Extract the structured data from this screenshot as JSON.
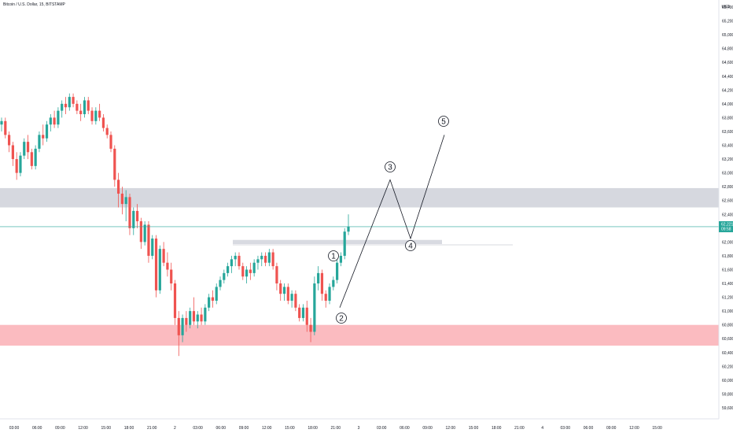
{
  "header": {
    "title": "Bitcoin / U.S. Dollar, 15, BITSTAMP",
    "currency": "USD"
  },
  "price_badge": {
    "value": "62,221",
    "countdown": "09:58"
  },
  "colors": {
    "up": "#26a69a",
    "down": "#ef5350",
    "resistance_zone": "#d1d4dc",
    "support_zone": "#fbb4b9",
    "last_price_line": "#26a69a"
  },
  "chart_data": {
    "type": "candlestick",
    "symbol": "Bitcoin / U.S. Dollar",
    "interval": "15",
    "exchange": "BITSTAMP",
    "ylim": [
      59600,
      65400
    ],
    "y_ticks": [
      65400,
      65200,
      65000,
      64800,
      64600,
      64400,
      64200,
      64000,
      63800,
      63600,
      63400,
      63200,
      63000,
      62800,
      62600,
      62400,
      62200,
      62000,
      61800,
      61600,
      61400,
      61200,
      61000,
      60800,
      60600,
      60400,
      60200,
      60000,
      59800,
      59600
    ],
    "x_ticks": [
      "03:00",
      "06:00",
      "09:00",
      "12:00",
      "15:00",
      "18:00",
      "21:00",
      "2",
      "03:00",
      "06:00",
      "09:00",
      "12:00",
      "15:00",
      "18:00",
      "21:00",
      "3",
      "03:00",
      "06:00",
      "09:00",
      "12:00",
      "15:00",
      "18:00",
      "21:00",
      "4",
      "03:00",
      "06:00",
      "09:00",
      "12:00",
      "15:00"
    ],
    "last_price": 62221,
    "zones": [
      {
        "type": "resistance",
        "from": 62500,
        "to": 62780
      },
      {
        "type": "support",
        "from": 60500,
        "to": 60800
      },
      {
        "type": "minor-resistance",
        "from": 61970,
        "to": 62030
      }
    ],
    "wave_labels": [
      "1",
      "2",
      "3",
      "4",
      "5"
    ],
    "wave_points": [
      {
        "label": "",
        "x": 160,
        "price": 61050
      },
      {
        "label": "3",
        "x": 180,
        "price": 62900
      },
      {
        "label": "4",
        "x": 190,
        "price": 62050
      },
      {
        "label": "5",
        "x": 205,
        "price": 63550
      }
    ],
    "candles_ohlc": [
      [
        63700,
        63800,
        63600,
        63750
      ],
      [
        63750,
        63800,
        63500,
        63550
      ],
      [
        63550,
        63600,
        63300,
        63400
      ],
      [
        63400,
        63450,
        63100,
        63200
      ],
      [
        63200,
        63300,
        62900,
        63000
      ],
      [
        63000,
        63300,
        62950,
        63250
      ],
      [
        63250,
        63500,
        63200,
        63450
      ],
      [
        63450,
        63550,
        63200,
        63300
      ],
      [
        63300,
        63350,
        63050,
        63100
      ],
      [
        63100,
        63400,
        63050,
        63350
      ],
      [
        63350,
        63600,
        63300,
        63550
      ],
      [
        63550,
        63700,
        63400,
        63500
      ],
      [
        63500,
        63750,
        63450,
        63700
      ],
      [
        63700,
        63850,
        63600,
        63800
      ],
      [
        63800,
        63900,
        63650,
        63700
      ],
      [
        63700,
        63950,
        63650,
        63900
      ],
      [
        63900,
        64050,
        63800,
        64000
      ],
      [
        64000,
        64100,
        63850,
        63950
      ],
      [
        63950,
        64150,
        63900,
        64100
      ],
      [
        64100,
        64150,
        63950,
        64000
      ],
      [
        64000,
        64050,
        63850,
        63900
      ],
      [
        63900,
        64000,
        63750,
        63850
      ],
      [
        63850,
        64100,
        63800,
        64050
      ],
      [
        64050,
        64100,
        63850,
        63900
      ],
      [
        63900,
        63950,
        63700,
        63750
      ],
      [
        63750,
        63950,
        63700,
        63900
      ],
      [
        63900,
        64000,
        63750,
        63800
      ],
      [
        63800,
        63850,
        63600,
        63650
      ],
      [
        63650,
        63700,
        63500,
        63550
      ],
      [
        63550,
        63600,
        63300,
        63350
      ],
      [
        63350,
        63400,
        62800,
        62900
      ],
      [
        62900,
        63000,
        62500,
        62700
      ],
      [
        62700,
        62800,
        62400,
        62550
      ],
      [
        62550,
        62750,
        62300,
        62650
      ],
      [
        62650,
        62700,
        62100,
        62200
      ],
      [
        62200,
        62500,
        62100,
        62450
      ],
      [
        62450,
        62550,
        62200,
        62300
      ],
      [
        62300,
        62350,
        61900,
        62000
      ],
      [
        62000,
        62300,
        61950,
        62250
      ],
      [
        62250,
        62300,
        61700,
        61800
      ],
      [
        61800,
        62100,
        61750,
        62050
      ],
      [
        62050,
        62100,
        61200,
        61300
      ],
      [
        61300,
        61950,
        61250,
        61900
      ],
      [
        61900,
        62000,
        61650,
        61700
      ],
      [
        61700,
        61850,
        61500,
        61600
      ],
      [
        61600,
        61700,
        61300,
        61400
      ],
      [
        61400,
        61450,
        60800,
        60900
      ],
      [
        60900,
        61000,
        60350,
        60650
      ],
      [
        60650,
        60950,
        60550,
        60900
      ],
      [
        60900,
        61000,
        60700,
        60800
      ],
      [
        60800,
        61050,
        60750,
        61000
      ],
      [
        61000,
        61200,
        60800,
        60850
      ],
      [
        60850,
        61000,
        60750,
        60950
      ],
      [
        60950,
        61050,
        60800,
        60850
      ],
      [
        60850,
        61100,
        60800,
        61050
      ],
      [
        61050,
        61250,
        61000,
        61200
      ],
      [
        61200,
        61300,
        61050,
        61150
      ],
      [
        61150,
        61400,
        61100,
        61350
      ],
      [
        61350,
        61500,
        61300,
        61450
      ],
      [
        61450,
        61600,
        61400,
        61550
      ],
      [
        61550,
        61700,
        61500,
        61650
      ],
      [
        61650,
        61800,
        61550,
        61750
      ],
      [
        61750,
        61850,
        61650,
        61800
      ],
      [
        61800,
        61850,
        61600,
        61650
      ],
      [
        61650,
        61700,
        61450,
        61500
      ],
      [
        61500,
        61650,
        61400,
        61600
      ],
      [
        61600,
        61700,
        61450,
        61550
      ],
      [
        61550,
        61750,
        61500,
        61700
      ],
      [
        61700,
        61800,
        61600,
        61750
      ],
      [
        61750,
        61850,
        61650,
        61800
      ],
      [
        61800,
        61850,
        61650,
        61700
      ],
      [
        61700,
        61900,
        61650,
        61850
      ],
      [
        61850,
        61900,
        61600,
        61650
      ],
      [
        61650,
        61700,
        61300,
        61400
      ],
      [
        61400,
        61450,
        61150,
        61250
      ],
      [
        61250,
        61400,
        61150,
        61350
      ],
      [
        61350,
        61400,
        61100,
        61150
      ],
      [
        61150,
        61300,
        61050,
        61250
      ],
      [
        61250,
        61300,
        61000,
        61050
      ],
      [
        61050,
        61100,
        60850,
        60900
      ],
      [
        60900,
        61100,
        60850,
        61050
      ],
      [
        61050,
        61150,
        60700,
        60800
      ],
      [
        60800,
        60900,
        60550,
        60700
      ],
      [
        60700,
        61500,
        60650,
        61400
      ],
      [
        61400,
        61650,
        61300,
        61550
      ],
      [
        61550,
        61600,
        61150,
        61250
      ],
      [
        61250,
        61300,
        61050,
        61150
      ],
      [
        61150,
        61400,
        61100,
        61350
      ],
      [
        61350,
        61500,
        61300,
        61450
      ],
      [
        61450,
        61750,
        61400,
        61700
      ],
      [
        61700,
        61850,
        61650,
        61800
      ],
      [
        61800,
        62200,
        61750,
        62150
      ],
      [
        62150,
        62400,
        62100,
        62221
      ]
    ]
  }
}
